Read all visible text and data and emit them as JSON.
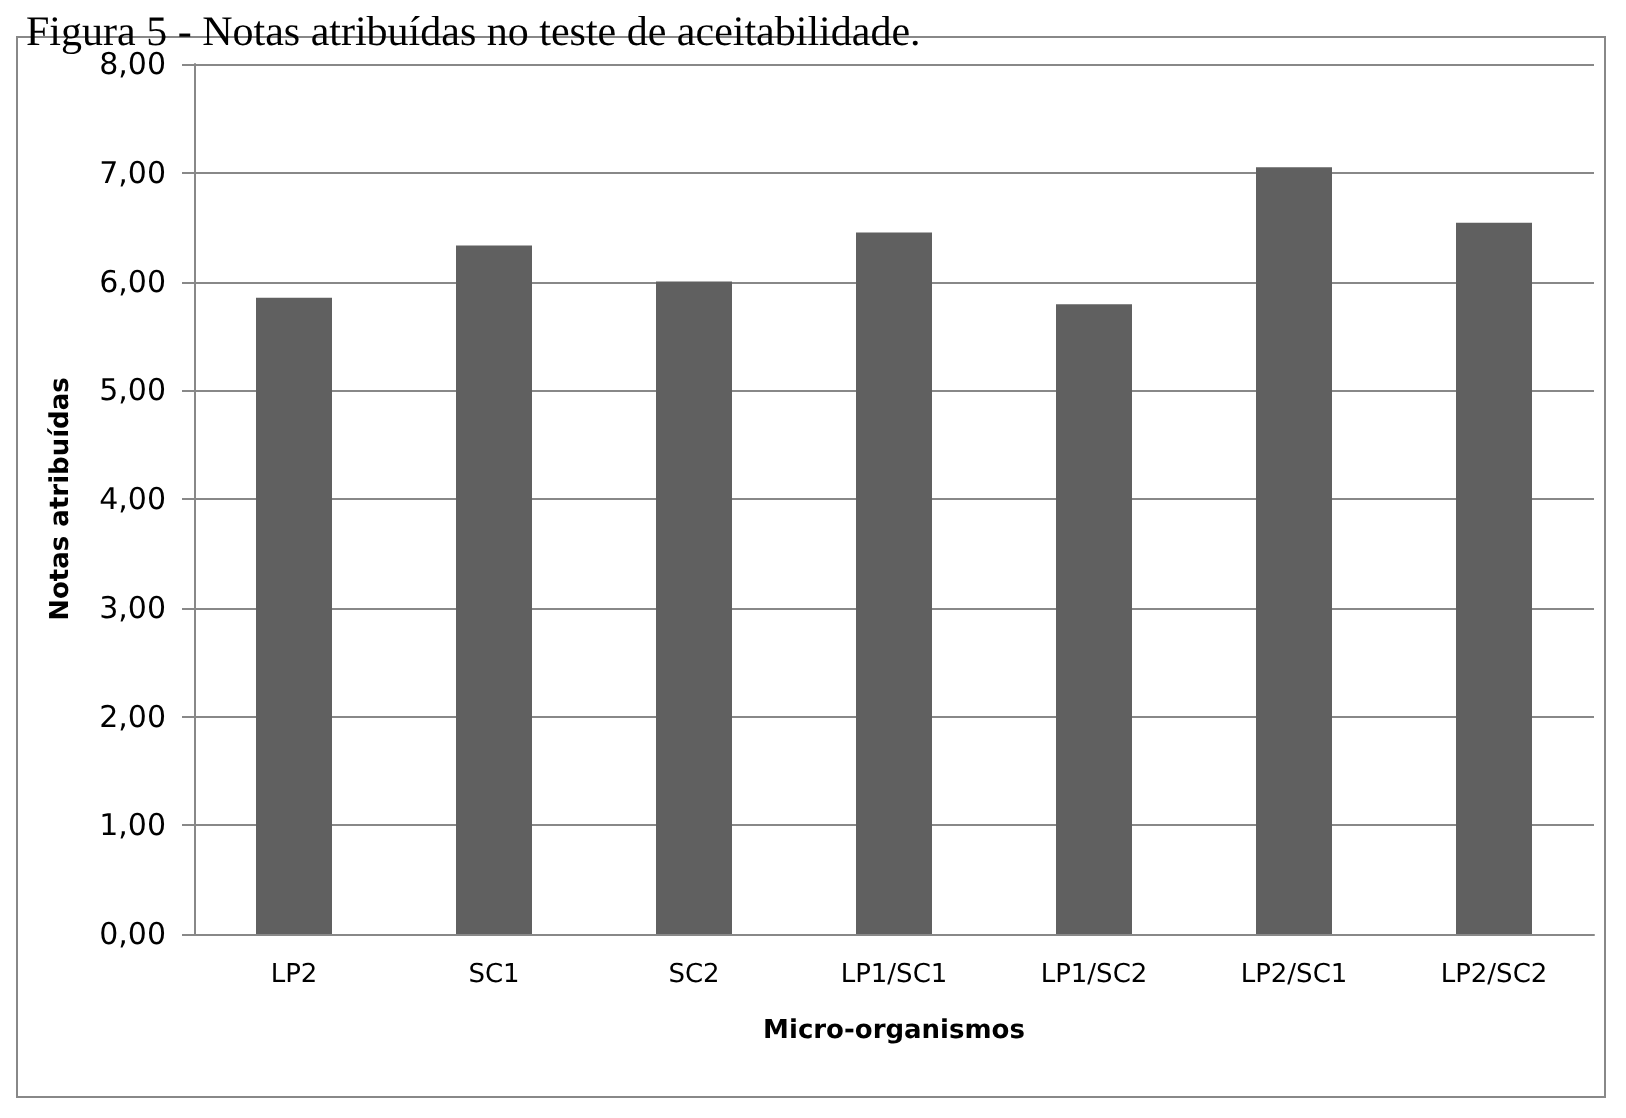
{
  "chart_data": {
    "type": "bar",
    "title": "Figura 5 - Notas atribuídas no teste de aceitabilidade.",
    "xlabel": "Micro-organismos",
    "ylabel": "Notas atribuídas",
    "categories": [
      "LP2",
      "SC1",
      "SC2",
      "LP1/SC1",
      "LP1/SC2",
      "LP2/SC1",
      "LP2/SC2"
    ],
    "series": [
      {
        "color": "#606060",
        "values": [
          5.85,
          6.33,
          6.0,
          6.45,
          5.79,
          7.05,
          6.54
        ]
      }
    ],
    "ylim": [
      0,
      8
    ],
    "yticks": [
      {
        "value": 0,
        "label": "0,00"
      },
      {
        "value": 1,
        "label": "1,00"
      },
      {
        "value": 2,
        "label": "2,00"
      },
      {
        "value": 3,
        "label": "3,00"
      },
      {
        "value": 4,
        "label": "4,00"
      },
      {
        "value": 5,
        "label": "5,00"
      },
      {
        "value": 6,
        "label": "6,00"
      },
      {
        "value": 7,
        "label": "7,00"
      },
      {
        "value": 8,
        "label": "8,00"
      }
    ],
    "grid": "y"
  }
}
